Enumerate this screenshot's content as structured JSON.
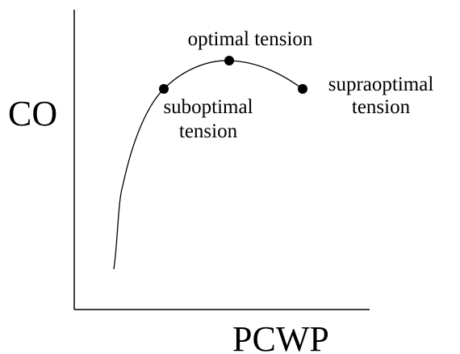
{
  "y_axis_label": "CO",
  "x_axis_label": "PCWP",
  "points": [
    {
      "lines": [
        "suboptimal",
        "tension"
      ]
    },
    {
      "lines": [
        "optimal tension"
      ]
    },
    {
      "lines": [
        "supraoptimal",
        "tension"
      ]
    }
  ]
}
